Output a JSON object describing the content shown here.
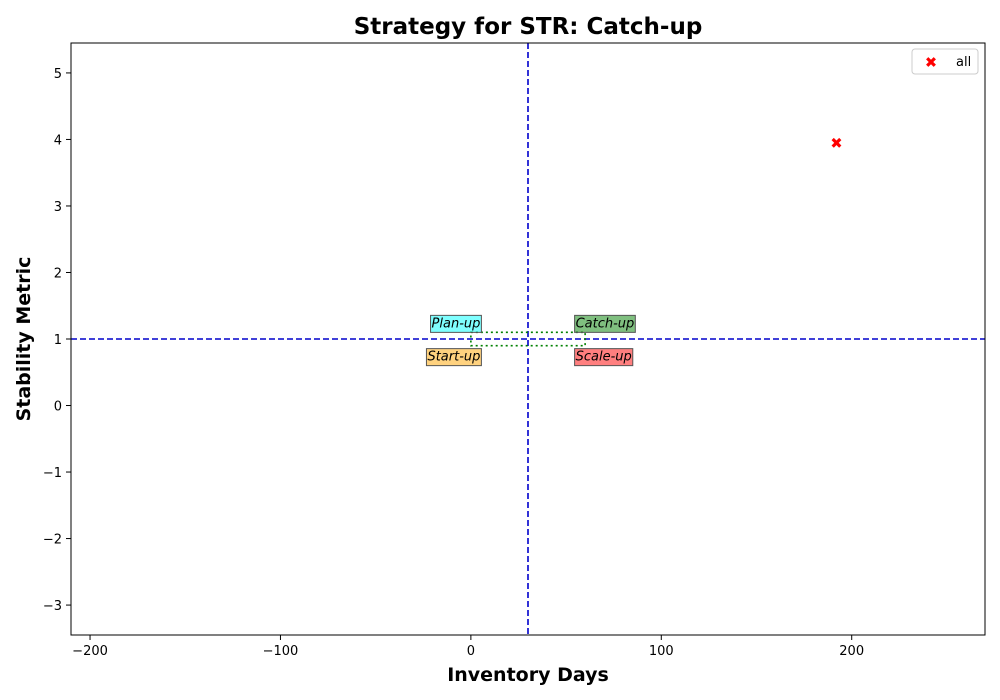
{
  "chart_data": {
    "type": "scatter",
    "title": "Strategy for STR: Catch-up",
    "xlabel": "Inventory Days",
    "ylabel": "Stability Metric",
    "xlim": [
      -210,
      270
    ],
    "ylim": [
      -3.45,
      5.45
    ],
    "xticks": [
      -200,
      -100,
      0,
      100,
      200
    ],
    "yticks": [
      -3,
      -2,
      -1,
      0,
      1,
      2,
      3,
      4,
      5
    ],
    "grid": false,
    "legend_position": "top-right",
    "reference_lines": {
      "x": 30,
      "y": 1,
      "color": "#0000cc",
      "style": "dashed"
    },
    "threshold_box": {
      "x": [
        0,
        60
      ],
      "y": [
        0.9,
        1.1
      ],
      "color": "#008000",
      "style": "dotted"
    },
    "quadrant_labels": [
      {
        "text": "Plan-up",
        "x": 5,
        "y": 1.25,
        "anchor": "end",
        "color": "#00ffff"
      },
      {
        "text": "Catch-up",
        "x": 55,
        "y": 1.25,
        "anchor": "start",
        "color": "#008000"
      },
      {
        "text": "Start-up",
        "x": 5,
        "y": 0.75,
        "anchor": "end",
        "color": "#ffa500"
      },
      {
        "text": "Scale-up",
        "x": 55,
        "y": 0.75,
        "anchor": "start",
        "color": "#ff0000"
      }
    ],
    "series": [
      {
        "name": "all",
        "marker": "X",
        "color": "#ff0000",
        "points": [
          {
            "x": 192,
            "y": 3.95
          }
        ]
      }
    ]
  }
}
